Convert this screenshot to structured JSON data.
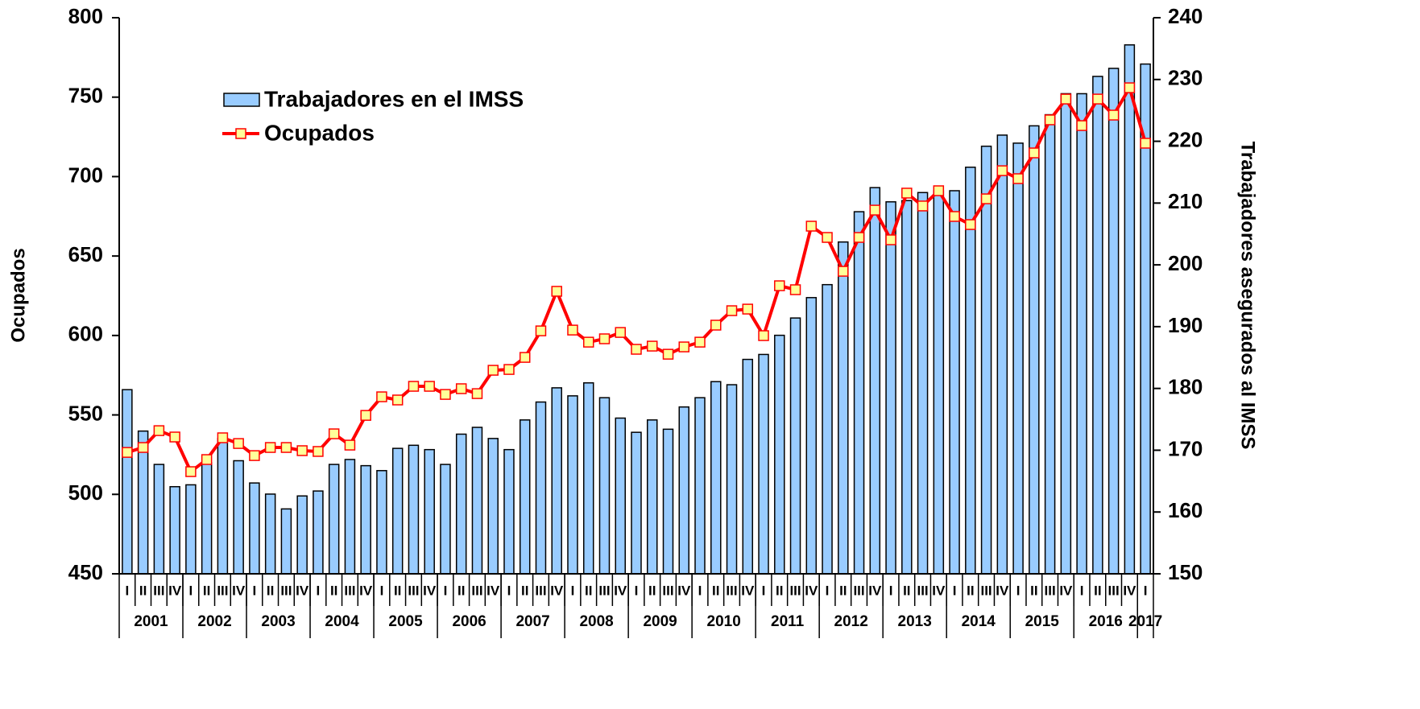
{
  "chart_data": {
    "type": "bar-line",
    "categories": [
      "I",
      "II",
      "III",
      "IV",
      "I",
      "II",
      "III",
      "IV",
      "I",
      "II",
      "III",
      "IV",
      "I",
      "II",
      "III",
      "IV",
      "I",
      "II",
      "III",
      "IV",
      "I",
      "II",
      "III",
      "IV",
      "I",
      "II",
      "III",
      "IV",
      "I",
      "II",
      "III",
      "IV",
      "I",
      "II",
      "III",
      "IV",
      "I",
      "II",
      "III",
      "IV",
      "I",
      "II",
      "III",
      "IV",
      "I",
      "II",
      "III",
      "IV",
      "I",
      "II",
      "III",
      "IV",
      "I",
      "II",
      "III",
      "IV",
      "I",
      "II",
      "III",
      "IV",
      "I",
      "II",
      "III",
      "IV",
      "I"
    ],
    "groups": [
      {
        "label": "2001",
        "count": 4
      },
      {
        "label": "2002",
        "count": 4
      },
      {
        "label": "2003",
        "count": 4
      },
      {
        "label": "2004",
        "count": 4
      },
      {
        "label": "2005",
        "count": 4
      },
      {
        "label": "2006",
        "count": 4
      },
      {
        "label": "2007",
        "count": 4
      },
      {
        "label": "2008",
        "count": 4
      },
      {
        "label": "2009",
        "count": 4
      },
      {
        "label": "2010",
        "count": 4
      },
      {
        "label": "2011",
        "count": 4
      },
      {
        "label": "2012",
        "count": 4
      },
      {
        "label": "2013",
        "count": 4
      },
      {
        "label": "2014",
        "count": 4
      },
      {
        "label": "2015",
        "count": 4
      },
      {
        "label": "2016",
        "count": 4
      },
      {
        "label": "2017",
        "count": 1
      }
    ],
    "series": [
      {
        "name": "Trabajadores en el IMSS",
        "type": "bar",
        "axis": "y2",
        "color": "#99ccff",
        "values": [
          179.8,
          173.1,
          167.7,
          164.1,
          164.4,
          168.0,
          171.9,
          168.3,
          164.7,
          162.9,
          160.5,
          162.6,
          163.4,
          167.7,
          168.5,
          167.5,
          166.7,
          170.3,
          170.8,
          170.1,
          167.7,
          172.6,
          173.7,
          171.9,
          170.1,
          174.9,
          177.8,
          180.1,
          178.8,
          180.9,
          178.5,
          175.2,
          172.9,
          174.9,
          173.4,
          177.0,
          178.5,
          181.1,
          180.6,
          184.7,
          185.5,
          188.6,
          191.4,
          194.7,
          196.8,
          203.7,
          208.6,
          212.5,
          210.2,
          210.4,
          211.7,
          212.0,
          212.0,
          215.8,
          219.2,
          221.0,
          219.7,
          222.5,
          224.3,
          227.7,
          227.7,
          230.5,
          231.8,
          235.6,
          232.5
        ]
      },
      {
        "name": "Ocupados",
        "type": "line",
        "axis": "y",
        "color": "#ff0000",
        "marker_color": "#ffff99",
        "values": [
          526.4,
          529.5,
          540.1,
          536.1,
          514.3,
          521.9,
          535.6,
          532.0,
          524.4,
          529.5,
          529.5,
          527.5,
          527.0,
          538.1,
          531.0,
          549.7,
          561.4,
          559.4,
          568.0,
          568.0,
          562.9,
          566.5,
          563.4,
          578.1,
          578.6,
          586.2,
          602.9,
          627.8,
          603.4,
          595.8,
          597.9,
          601.9,
          591.3,
          593.3,
          588.2,
          592.8,
          595.8,
          606.5,
          615.6,
          616.6,
          599.9,
          631.3,
          628.8,
          668.8,
          661.7,
          640.4,
          661.7,
          678.9,
          660.2,
          689.6,
          681.5,
          691.1,
          674.9,
          669.8,
          686.0,
          703.7,
          698.7,
          714.9,
          735.7,
          748.8,
          732.1,
          748.8,
          738.7,
          755.9,
          721.0
        ]
      }
    ],
    "ylabel": "Ocupados",
    "y2label": "Trabajadores asegurados al IMSS",
    "ylim": [
      450,
      800
    ],
    "yticks": [
      450,
      500,
      550,
      600,
      650,
      700,
      750,
      800
    ],
    "y2lim": [
      150,
      240
    ],
    "y2ticks": [
      150,
      160,
      170,
      180,
      190,
      200,
      210,
      220,
      230,
      240
    ]
  }
}
